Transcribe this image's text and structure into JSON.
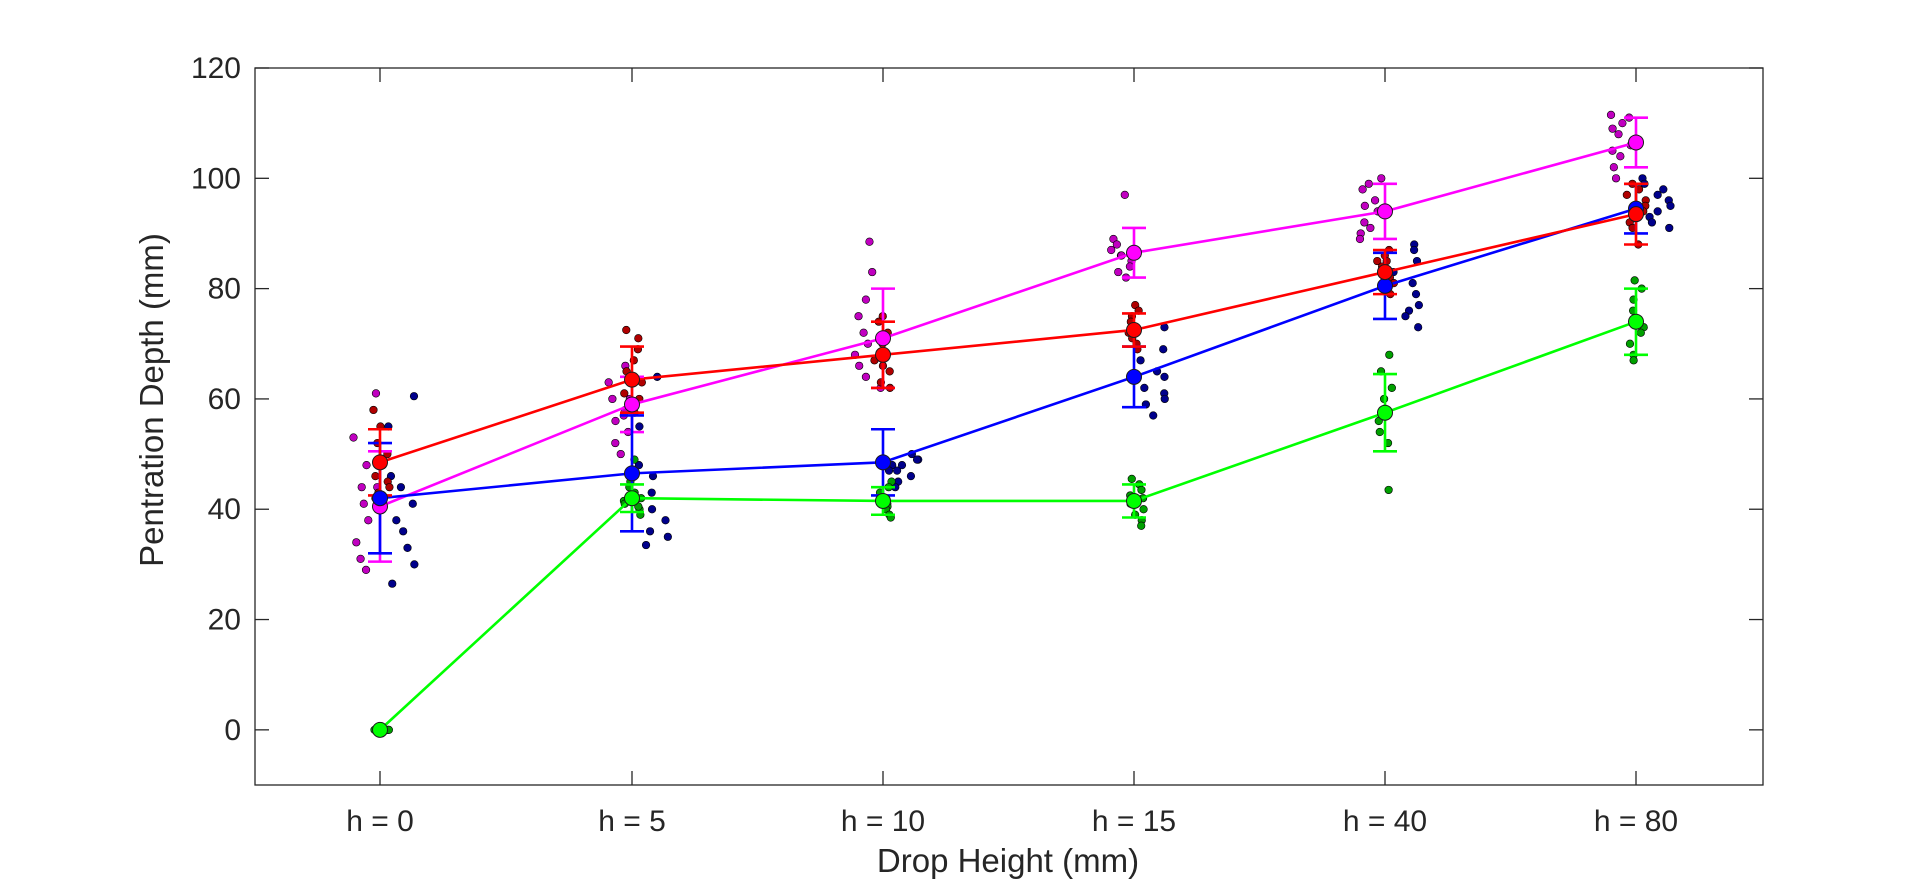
{
  "chart_data": {
    "type": "line",
    "title": "",
    "xlabel": "Drop Height (mm)",
    "ylabel": "Pentration Depth (mm)",
    "categories": [
      "h = 0",
      "h = 5",
      "h = 10",
      "h = 15",
      "h = 40",
      "h = 80"
    ],
    "ylim": [
      -10,
      120
    ],
    "yticks": [
      0,
      20,
      40,
      60,
      80,
      100,
      120
    ],
    "grid": false,
    "legend": "none",
    "series": [
      {
        "color": "#ff00ff",
        "offset": 0,
        "values": [
          40.5,
          59,
          71,
          86.5,
          94,
          106.5
        ],
        "errors": [
          10,
          5,
          9,
          4.5,
          5,
          4.5
        ],
        "points": [
          [
            61,
            53,
            48,
            44,
            41,
            38,
            34,
            31,
            29,
            44
          ],
          [
            66,
            63,
            60,
            58,
            56,
            54,
            52,
            50,
            60,
            57
          ],
          [
            88.5,
            83,
            78,
            75,
            72,
            70,
            68,
            66,
            64,
            62
          ],
          [
            97,
            89,
            88,
            87,
            86,
            85,
            84,
            83,
            82,
            86
          ],
          [
            100,
            99,
            98,
            96,
            94,
            92,
            91,
            90,
            89,
            95
          ],
          [
            111.5,
            111,
            110,
            108,
            106,
            104,
            102,
            100,
            109,
            105
          ]
        ]
      },
      {
        "color": "#0000ff",
        "offset": 0,
        "values": [
          42,
          46.5,
          48.5,
          64,
          80.5,
          94.5
        ],
        "errors": [
          10,
          10.5,
          6,
          5.5,
          6,
          4.5
        ],
        "points": [
          [
            60.5,
            55,
            46,
            44,
            41,
            38,
            36,
            33,
            30,
            26.5
          ],
          [
            64,
            55,
            48,
            46,
            43,
            40,
            38,
            36,
            35,
            33.5
          ],
          [
            50,
            49,
            48,
            47,
            46,
            45,
            44,
            49,
            47,
            48
          ],
          [
            73,
            69,
            67,
            65,
            64,
            62,
            61,
            60,
            59,
            57
          ],
          [
            88,
            87,
            85,
            83,
            81,
            79,
            77,
            76,
            75,
            73
          ],
          [
            100,
            99,
            98,
            97,
            96,
            95,
            94,
            93,
            92,
            91
          ]
        ]
      },
      {
        "color": "#ff0000",
        "offset": 0,
        "values": [
          48.5,
          63.5,
          68,
          72.5,
          83,
          93.5
        ],
        "errors": [
          6,
          6,
          6,
          3,
          4,
          5.5
        ],
        "points": [
          [
            58,
            55,
            52,
            50,
            48,
            46,
            45,
            44,
            43,
            42
          ],
          [
            72.5,
            71,
            69,
            67,
            65,
            63,
            61,
            60,
            59,
            57.5
          ],
          [
            75,
            74,
            72,
            70,
            68,
            67,
            66,
            65,
            63,
            62
          ],
          [
            77,
            76,
            75,
            74,
            73,
            72,
            71,
            70,
            73,
            69
          ],
          [
            87,
            86,
            85,
            84,
            83,
            82,
            81,
            80,
            85,
            79
          ],
          [
            99,
            98,
            97,
            96,
            95,
            94,
            93,
            92,
            91,
            88
          ]
        ]
      },
      {
        "color": "#00ff00",
        "offset": 0,
        "values": [
          0,
          42,
          41.5,
          41.5,
          57.5,
          74
        ],
        "errors": [
          0,
          2.5,
          2.5,
          3,
          7,
          6
        ],
        "points": [
          [
            0,
            0,
            0,
            0,
            0,
            0,
            0,
            0,
            0,
            0
          ],
          [
            49,
            45,
            44,
            43,
            42,
            41.5,
            41,
            40,
            39,
            40.5
          ],
          [
            45,
            44,
            43,
            42,
            41.5,
            41,
            40.5,
            40,
            39,
            38.5
          ],
          [
            45.5,
            44.5,
            43.5,
            42.5,
            42,
            41,
            40,
            39,
            38,
            37
          ],
          [
            68,
            65,
            62,
            60,
            58,
            57,
            56,
            54,
            52,
            43.5
          ],
          [
            81.5,
            80,
            78,
            76,
            74,
            73,
            72,
            70,
            68,
            67
          ]
        ]
      }
    ]
  }
}
